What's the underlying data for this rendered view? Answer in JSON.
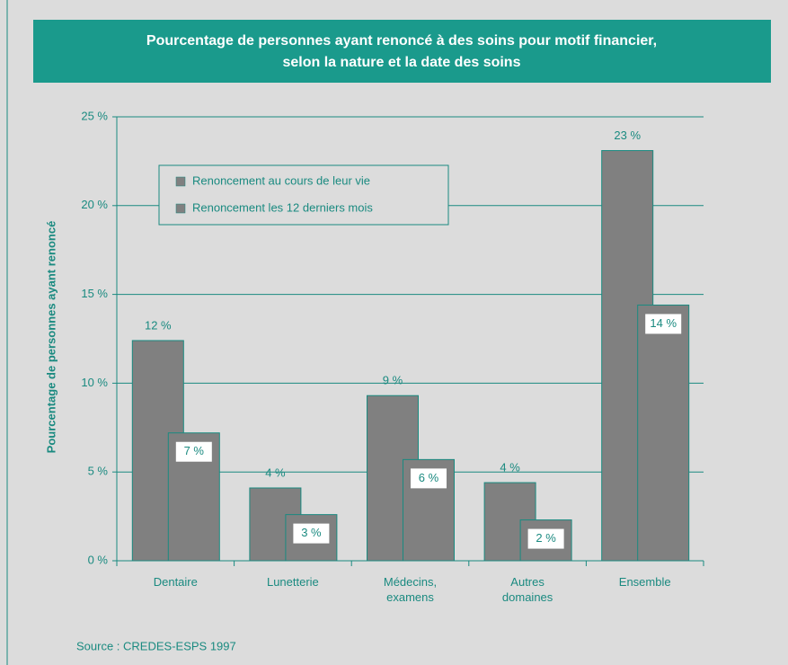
{
  "chart_data": {
    "type": "bar",
    "title": [
      "Pourcentage de personnes ayant renoncé à des soins pour motif financier,",
      "selon la nature et la date des soins"
    ],
    "y_label": "Pourcentage de personnes ayant renoncé",
    "source": "Source : CREDES-ESPS 1997",
    "categories": [
      "Dentaire",
      "Lunetterie",
      "Médecins, examens",
      "Autres domaines",
      "Ensemble"
    ],
    "series": [
      {
        "name": "Renoncement au cours de leur vie",
        "color": "#808080",
        "values": [
          12.4,
          4.1,
          9.3,
          4.4,
          23.1
        ],
        "value_labels": [
          "12 %",
          "4 %",
          "9 %",
          "4 %",
          "23 %"
        ]
      },
      {
        "name": "Renoncement les 12 derniers mois",
        "color": "#808080",
        "values": [
          7.2,
          2.6,
          5.7,
          2.3,
          14.4
        ],
        "value_labels": [
          "7 %",
          "3 %",
          "6 %",
          "2 %",
          "14 %"
        ]
      }
    ],
    "ylim": [
      0,
      25
    ],
    "yticks": [
      {
        "value": 0,
        "label": "0 %"
      },
      {
        "value": 5,
        "label": "5 %"
      },
      {
        "value": 10,
        "label": "10 %"
      },
      {
        "value": 15,
        "label": "15 %"
      },
      {
        "value": 20,
        "label": "20 %"
      },
      {
        "value": 25,
        "label": "25 %"
      }
    ],
    "grid": true
  }
}
